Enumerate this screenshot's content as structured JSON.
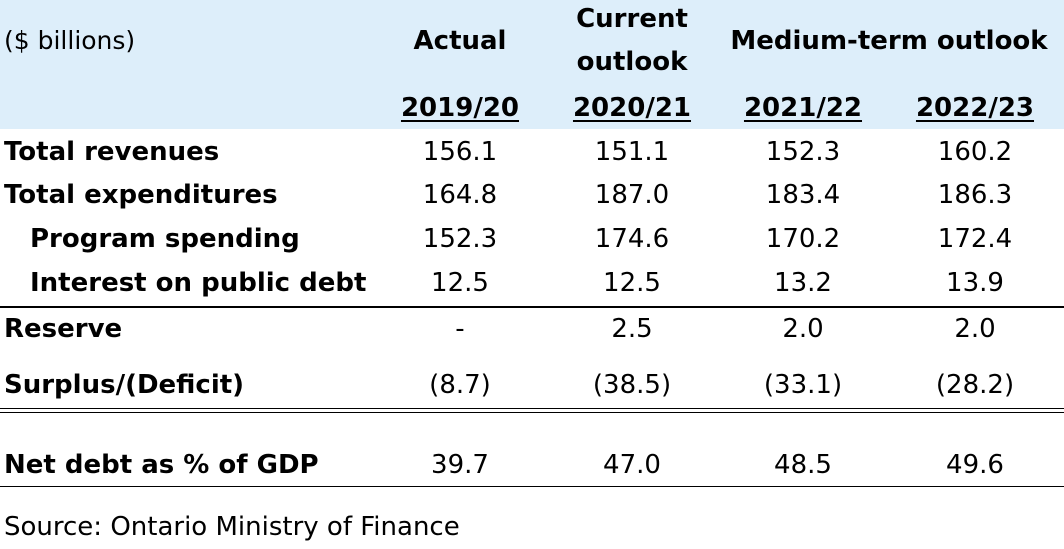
{
  "header": {
    "unit_label": "($ billions)",
    "actual_label": "Actual",
    "current_label_line1": "Current",
    "current_label_line2": "outlook",
    "medium_label": "Medium-term outlook",
    "years": [
      "2019/20",
      "2020/21",
      "2021/22",
      "2022/23"
    ]
  },
  "rows": [
    {
      "label": "Total revenues",
      "values": [
        "156.1",
        "151.1",
        "152.3",
        "160.2"
      ]
    },
    {
      "label": "Total expenditures",
      "values": [
        "164.8",
        "187.0",
        "183.4",
        "186.3"
      ]
    },
    {
      "label": "Program spending",
      "values": [
        "152.3",
        "174.6",
        "170.2",
        "172.4"
      ]
    },
    {
      "label": "Interest on public debt",
      "values": [
        "12.5",
        "12.5",
        "13.2",
        "13.9"
      ]
    },
    {
      "label": "Reserve",
      "values": [
        "-",
        "2.5",
        "2.0",
        "2.0"
      ]
    },
    {
      "label": "Surplus/(Deficit)",
      "values": [
        "(8.7)",
        "(38.5)",
        "(33.1)",
        "(28.2)"
      ]
    },
    {
      "label": "Net debt as % of GDP",
      "values": [
        "39.7",
        "47.0",
        "48.5",
        "49.6"
      ]
    }
  ],
  "source": "Source: Ontario Ministry of Finance",
  "colors": {
    "header_background": "#ddeefa",
    "text": "#000000"
  }
}
